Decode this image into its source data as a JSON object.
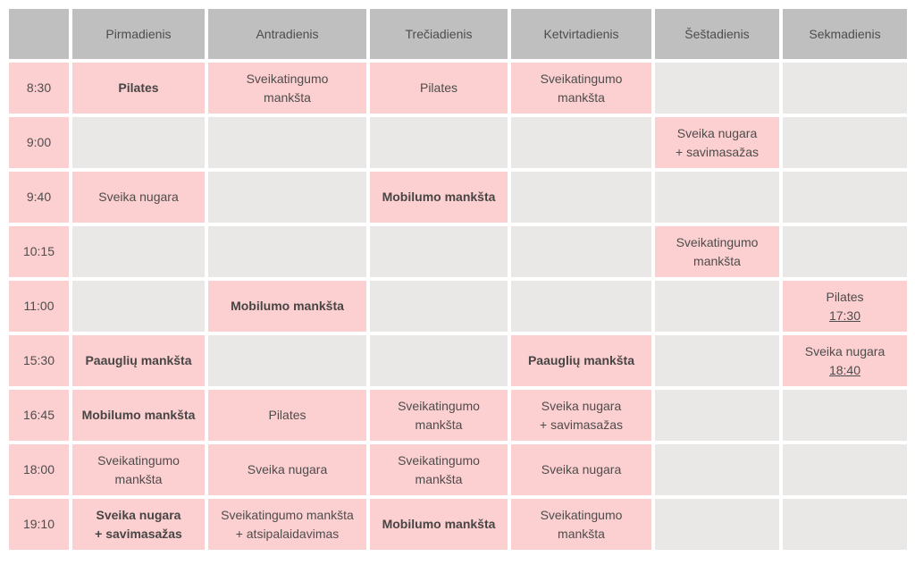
{
  "colors": {
    "header_bg": "#c0bfbf",
    "filled_cell_bg": "#fcd0d1",
    "empty_cell_bg": "#e9e8e6",
    "text": "#4e4c4c",
    "gap": "#ffffff"
  },
  "table": {
    "corner_label": "",
    "day_headers": [
      "Pirmadienis",
      "Antradienis",
      "Trečiadienis",
      "Ketvirtadienis",
      "Šeštadienis",
      "Sekmadienis"
    ],
    "rows": [
      {
        "time": "8:30",
        "cells": [
          {
            "label": "Pilates",
            "bold": true
          },
          {
            "label": "Sveikatingumo\nmankšta"
          },
          {
            "label": "Pilates"
          },
          {
            "label": "Sveikatingumo\nmankšta"
          },
          {},
          {}
        ]
      },
      {
        "time": "9:00",
        "cells": [
          {},
          {},
          {},
          {},
          {
            "label": "Sveika nugara\n+ savimasažas"
          },
          {}
        ]
      },
      {
        "time": "9:40",
        "cells": [
          {
            "label": "Sveika nugara"
          },
          {},
          {
            "label": "Mobilumo mankšta",
            "bold": true
          },
          {},
          {},
          {}
        ]
      },
      {
        "time": "10:15",
        "cells": [
          {},
          {},
          {},
          {},
          {
            "label": "Sveikatingumo\nmankšta"
          },
          {}
        ]
      },
      {
        "time": "11:00",
        "cells": [
          {},
          {
            "label": "Mobilumo mankšta",
            "bold": true
          },
          {},
          {},
          {},
          {
            "label": "Pilates",
            "link": "17:30"
          }
        ]
      },
      {
        "time": "15:30",
        "cells": [
          {
            "label": "Paauglių mankšta",
            "bold": true
          },
          {},
          {},
          {
            "label": "Paauglių mankšta",
            "bold": true
          },
          {},
          {
            "label": "Sveika nugara",
            "link": "18:40"
          }
        ]
      },
      {
        "time": "16:45",
        "cells": [
          {
            "label": "Mobilumo mankšta",
            "bold": true
          },
          {
            "label": "Pilates"
          },
          {
            "label": "Sveikatingumo\nmankšta"
          },
          {
            "label": "Sveika nugara\n+ savimasažas"
          },
          {},
          {}
        ]
      },
      {
        "time": "18:00",
        "cells": [
          {
            "label": "Sveikatingumo\nmankšta"
          },
          {
            "label": "Sveika nugara"
          },
          {
            "label": "Sveikatingumo\nmankšta"
          },
          {
            "label": "Sveika nugara"
          },
          {},
          {}
        ]
      },
      {
        "time": "19:10",
        "cells": [
          {
            "label": "Sveika nugara\n+ savimasažas",
            "bold": true
          },
          {
            "label": "Sveikatingumo mankšta\n+ atsipalaidavimas"
          },
          {
            "label": "Mobilumo mankšta",
            "bold": true
          },
          {
            "label": "Sveikatingumo\nmankšta"
          },
          {},
          {}
        ]
      }
    ]
  }
}
